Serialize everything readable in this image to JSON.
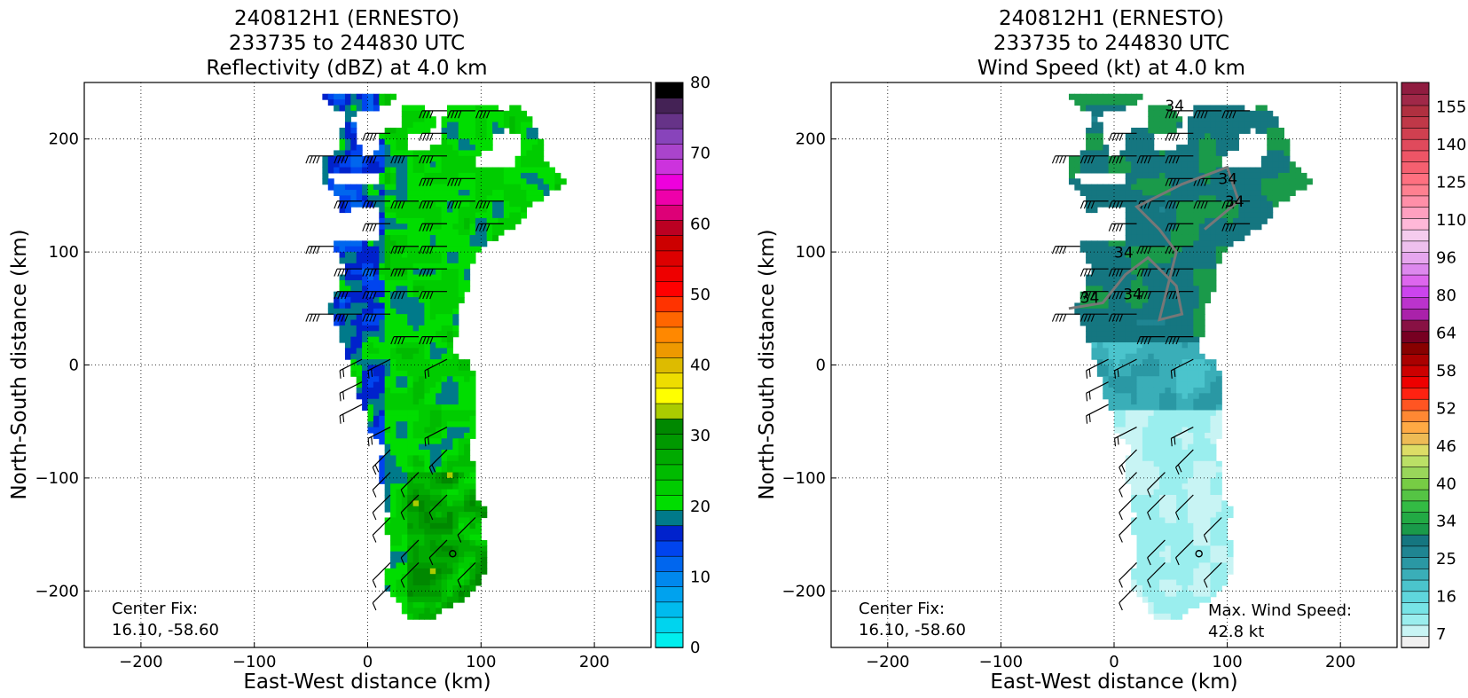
{
  "chart_data": [
    {
      "type": "heatmap",
      "variable": "reflectivity",
      "title_lines": [
        "240812H1 (ERNESTO)",
        "233735 to 244830 UTC",
        "Reflectivity (dBZ) at 4.0 km"
      ],
      "xlabel": "East-West distance (km)",
      "ylabel": "North-South distance (km)",
      "xlim": [
        -250,
        250
      ],
      "ylim": [
        -250,
        250
      ],
      "xticks": [
        -200,
        -100,
        0,
        100,
        200
      ],
      "yticks": [
        -200,
        -100,
        0,
        100,
        200
      ],
      "grid": true,
      "colorbar": {
        "min": 0,
        "max": 80,
        "tick_labels": [
          0,
          10,
          20,
          30,
          40,
          50,
          60,
          70,
          80
        ],
        "colors": [
          "#00eeee",
          "#00d4ee",
          "#00bbee",
          "#00a2ee",
          "#0088ee",
          "#0066ee",
          "#0044ee",
          "#0022cc",
          "#007a8a",
          "#00dd00",
          "#00cc00",
          "#00bb00",
          "#00aa00",
          "#009900",
          "#008800",
          "#aacc00",
          "#ffff00",
          "#eedd00",
          "#ddbb00",
          "#ee9900",
          "#ff8800",
          "#ff6600",
          "#ff3300",
          "#ff0000",
          "#ee0000",
          "#dd0000",
          "#cc0000",
          "#bb0022",
          "#dd0077",
          "#ee00aa",
          "#ee00dd",
          "#cc33dd",
          "#aa44cc",
          "#8844bb",
          "#663388",
          "#442255",
          "#000000"
        ]
      },
      "annotations": {
        "center_fix_label": "Center Fix:",
        "center_fix_value": "16.10, -58.60"
      },
      "center_marker": [
        75,
        -167
      ]
    },
    {
      "type": "heatmap",
      "variable": "wind_speed",
      "title_lines": [
        "240812H1 (ERNESTO)",
        "233735 to 244830 UTC",
        "Wind Speed (kt) at 4.0 km"
      ],
      "xlabel": "East-West distance (km)",
      "ylabel": "North-South distance (km)",
      "xlim": [
        -250,
        250
      ],
      "ylim": [
        -250,
        250
      ],
      "xticks": [
        -200,
        -100,
        0,
        100,
        200
      ],
      "yticks": [
        -200,
        -100,
        0,
        100,
        200
      ],
      "grid": true,
      "colorbar": {
        "tick_labels": [
          7,
          16,
          25,
          34,
          40,
          46,
          52,
          58,
          64,
          80,
          96,
          110,
          125,
          140,
          155
        ],
        "colors": [
          "#f0f0f0",
          "#c8f4f4",
          "#9aeeee",
          "#77e4e6",
          "#5fd6dc",
          "#4bc4cc",
          "#3aaeb8",
          "#2a98a4",
          "#1f8592",
          "#157680",
          "#1a9a4a",
          "#22aa44",
          "#33bb44",
          "#55c444",
          "#77cc44",
          "#99d65a",
          "#bbe066",
          "#dddd66",
          "#eebb55",
          "#ffaa44",
          "#ff8833",
          "#ff5522",
          "#ff2211",
          "#ee0000",
          "#cc0000",
          "#aa0000",
          "#880000",
          "#770022",
          "#881144",
          "#aa22aa",
          "#bb33cc",
          "#cc44ee",
          "#dd66ee",
          "#dd88ee",
          "#e6a6ee",
          "#eec0ee",
          "#f5ccee",
          "#ffb8d8",
          "#ffa0c0",
          "#ff8fa8",
          "#ff8090",
          "#ff7080",
          "#f56070",
          "#ee5566",
          "#e04a5c",
          "#d04050",
          "#c03848",
          "#b03040",
          "#a02848",
          "#901c40"
        ]
      },
      "annotations": {
        "center_fix_label": "Center Fix:",
        "center_fix_value": "16.10, -58.60",
        "max_wind_label": "Max. Wind Speed:",
        "max_wind_value": "42.8 kt",
        "contour_label": "34"
      },
      "center_marker": [
        75,
        -167
      ]
    }
  ]
}
